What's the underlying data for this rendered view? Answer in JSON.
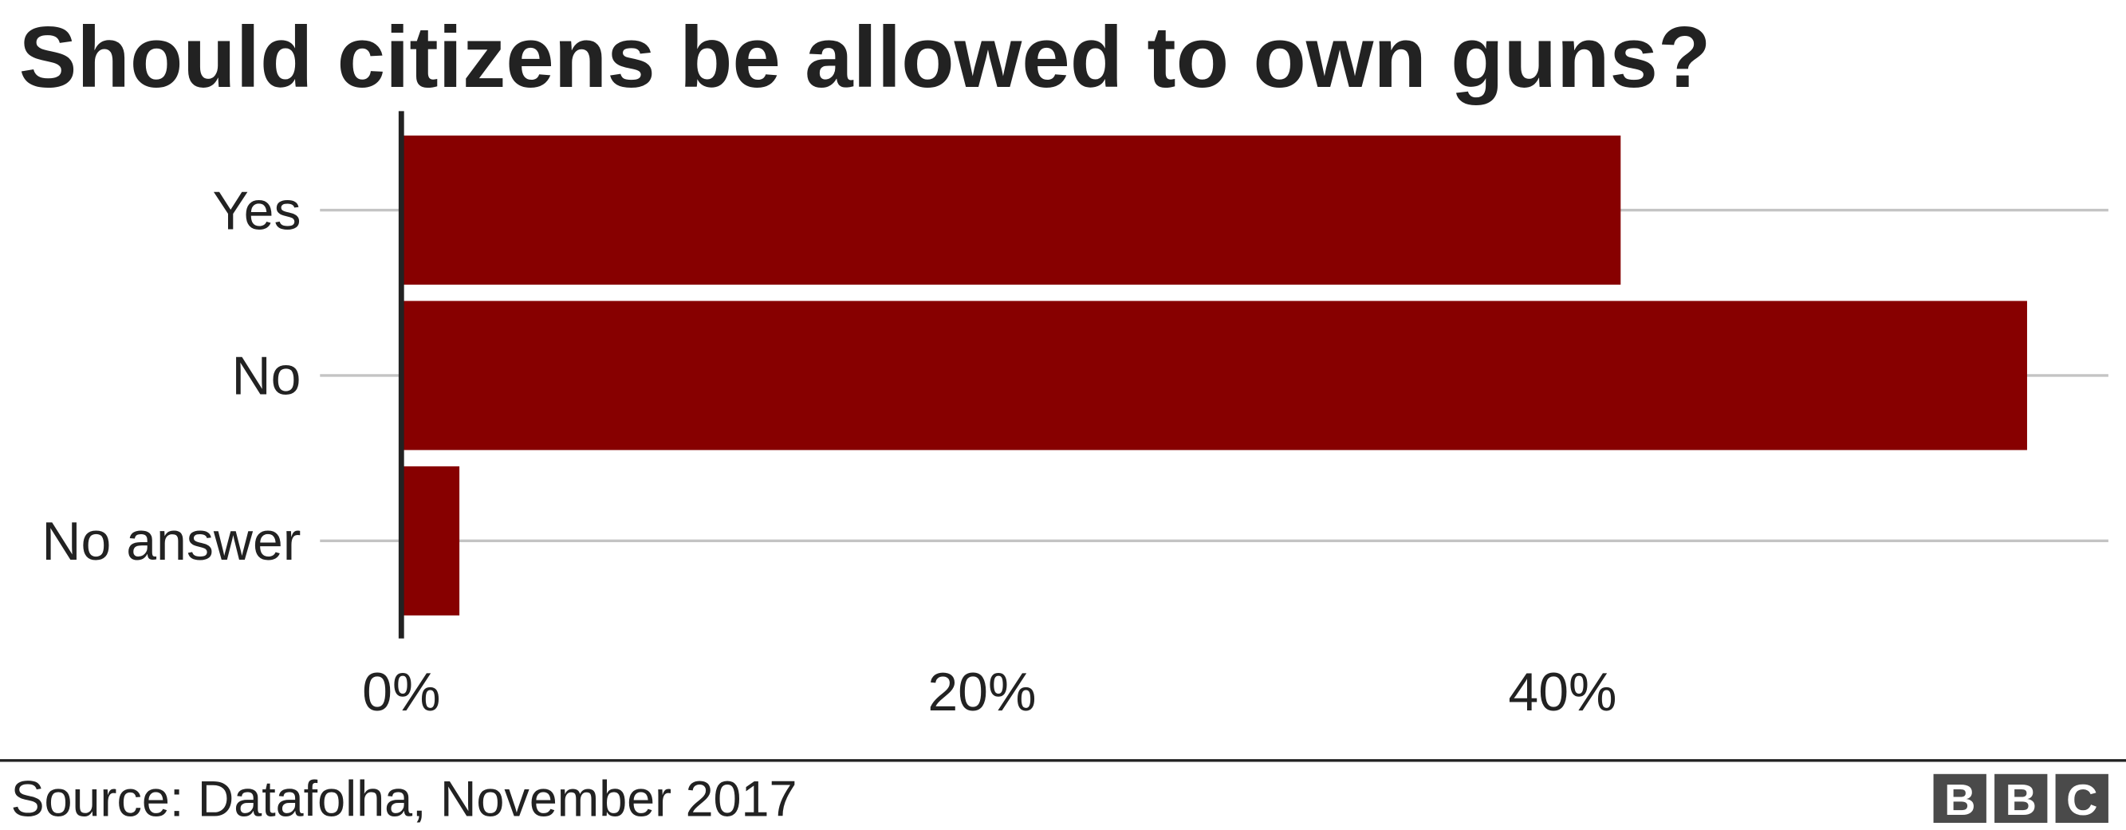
{
  "chart_data": {
    "type": "barh",
    "title": "Should citizens be allowed to own guns?",
    "categories": [
      "Yes",
      "No",
      "No answer"
    ],
    "values": [
      42,
      56,
      2
    ],
    "color": "#870000",
    "xlim": [
      0,
      58.8
    ],
    "xticks": [
      {
        "value": 0,
        "label": "0%"
      },
      {
        "value": 20,
        "label": "20%"
      },
      {
        "value": 40,
        "label": "40%"
      }
    ],
    "grid": true,
    "source": "Source: Datafolha, November 2017"
  },
  "logo": [
    "B",
    "B",
    "C"
  ]
}
